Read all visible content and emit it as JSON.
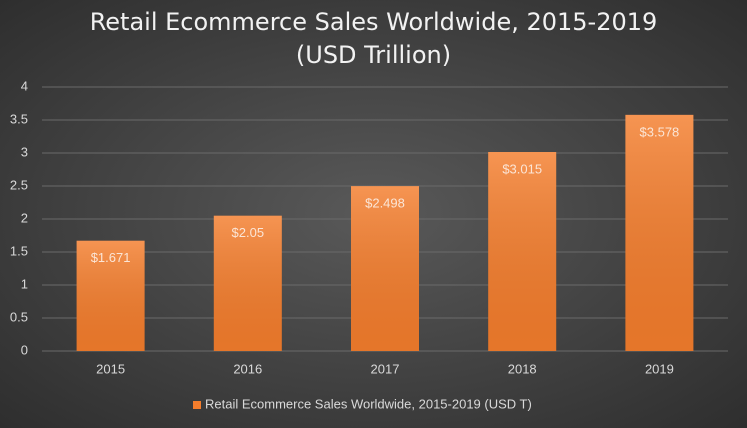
{
  "chart_data": {
    "type": "bar",
    "title": "Retail Ecommerce Sales Worldwide, 2015-2019 (USD Trillion)",
    "categories": [
      "2015",
      "2016",
      "2017",
      "2018",
      "2019"
    ],
    "series": [
      {
        "name": "Retail Ecommerce Sales Worldwide, 2015-2019 (USD T)",
        "color": "#f47d2c",
        "values": [
          1.671,
          2.05,
          2.498,
          3.015,
          3.578
        ],
        "value_labels": [
          "$1.671",
          "$2.05",
          "$2.498",
          "$3.015",
          "$3.578"
        ]
      }
    ],
    "ylim": [
      0,
      4
    ],
    "yticks": [
      0,
      0.5,
      1,
      1.5,
      2,
      2.5,
      3,
      3.5,
      4
    ],
    "grid": true,
    "legend": "bottom"
  }
}
